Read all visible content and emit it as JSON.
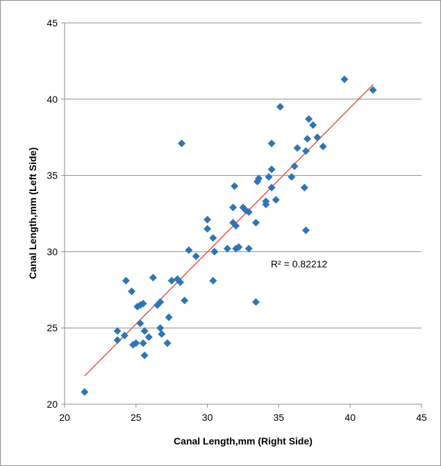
{
  "chart_data": {
    "type": "scatter",
    "xlabel": "Canal Length,mm (Right Side)",
    "ylabel": "Canal Length,mm (Left Side)",
    "xlim": [
      20,
      45
    ],
    "ylim": [
      20,
      45
    ],
    "xticks": [
      20,
      25,
      30,
      35,
      40,
      45
    ],
    "yticks": [
      20,
      25,
      30,
      35,
      40,
      45
    ],
    "grid": "horizontal",
    "marker_color": "#2e75b6",
    "trendline_color": "#e8544a",
    "trendline": {
      "x": [
        21.4,
        41.6
      ],
      "y": [
        21.85,
        40.95
      ]
    },
    "annotation": "R² = 0.82212",
    "points": [
      {
        "x": 21.4,
        "y": 20.8
      },
      {
        "x": 23.7,
        "y": 24.2
      },
      {
        "x": 23.7,
        "y": 24.8
      },
      {
        "x": 24.2,
        "y": 24.5
      },
      {
        "x": 24.3,
        "y": 28.1
      },
      {
        "x": 24.7,
        "y": 27.4
      },
      {
        "x": 24.8,
        "y": 23.9
      },
      {
        "x": 25.0,
        "y": 24.0
      },
      {
        "x": 25.1,
        "y": 26.4
      },
      {
        "x": 25.3,
        "y": 26.5
      },
      {
        "x": 25.3,
        "y": 25.3
      },
      {
        "x": 25.5,
        "y": 24.0
      },
      {
        "x": 25.5,
        "y": 26.6
      },
      {
        "x": 25.6,
        "y": 24.8
      },
      {
        "x": 25.6,
        "y": 23.2
      },
      {
        "x": 25.9,
        "y": 24.4
      },
      {
        "x": 26.2,
        "y": 28.3
      },
      {
        "x": 26.5,
        "y": 26.5
      },
      {
        "x": 26.7,
        "y": 26.7
      },
      {
        "x": 26.7,
        "y": 25.0
      },
      {
        "x": 26.8,
        "y": 24.6
      },
      {
        "x": 27.2,
        "y": 24.0
      },
      {
        "x": 27.3,
        "y": 25.7
      },
      {
        "x": 27.5,
        "y": 28.1
      },
      {
        "x": 27.9,
        "y": 28.2
      },
      {
        "x": 28.1,
        "y": 28.0
      },
      {
        "x": 28.2,
        "y": 37.1
      },
      {
        "x": 28.4,
        "y": 26.8
      },
      {
        "x": 28.7,
        "y": 30.1
      },
      {
        "x": 29.2,
        "y": 29.7
      },
      {
        "x": 30.0,
        "y": 32.1
      },
      {
        "x": 30.0,
        "y": 31.5
      },
      {
        "x": 30.4,
        "y": 30.9
      },
      {
        "x": 30.4,
        "y": 28.1
      },
      {
        "x": 30.5,
        "y": 30.0
      },
      {
        "x": 31.4,
        "y": 30.2
      },
      {
        "x": 31.8,
        "y": 32.9
      },
      {
        "x": 31.8,
        "y": 31.9
      },
      {
        "x": 31.9,
        "y": 34.3
      },
      {
        "x": 32.0,
        "y": 31.7
      },
      {
        "x": 32.0,
        "y": 30.2
      },
      {
        "x": 32.2,
        "y": 30.3
      },
      {
        "x": 32.5,
        "y": 32.9
      },
      {
        "x": 32.7,
        "y": 32.7
      },
      {
        "x": 32.9,
        "y": 32.6
      },
      {
        "x": 32.9,
        "y": 30.2
      },
      {
        "x": 33.4,
        "y": 31.9
      },
      {
        "x": 33.4,
        "y": 26.7
      },
      {
        "x": 33.5,
        "y": 34.6
      },
      {
        "x": 33.6,
        "y": 34.8
      },
      {
        "x": 34.1,
        "y": 33.3
      },
      {
        "x": 34.1,
        "y": 33.1
      },
      {
        "x": 34.3,
        "y": 34.9
      },
      {
        "x": 34.5,
        "y": 37.1
      },
      {
        "x": 34.5,
        "y": 35.4
      },
      {
        "x": 34.5,
        "y": 34.2
      },
      {
        "x": 34.8,
        "y": 33.4
      },
      {
        "x": 35.1,
        "y": 39.5
      },
      {
        "x": 35.9,
        "y": 34.9
      },
      {
        "x": 36.1,
        "y": 35.6
      },
      {
        "x": 36.3,
        "y": 36.8
      },
      {
        "x": 36.8,
        "y": 34.2
      },
      {
        "x": 36.9,
        "y": 36.6
      },
      {
        "x": 36.9,
        "y": 31.4
      },
      {
        "x": 37.0,
        "y": 37.4
      },
      {
        "x": 37.1,
        "y": 38.7
      },
      {
        "x": 37.4,
        "y": 38.3
      },
      {
        "x": 37.7,
        "y": 37.5
      },
      {
        "x": 38.1,
        "y": 36.9
      },
      {
        "x": 39.6,
        "y": 41.3
      },
      {
        "x": 41.6,
        "y": 40.6
      }
    ]
  }
}
